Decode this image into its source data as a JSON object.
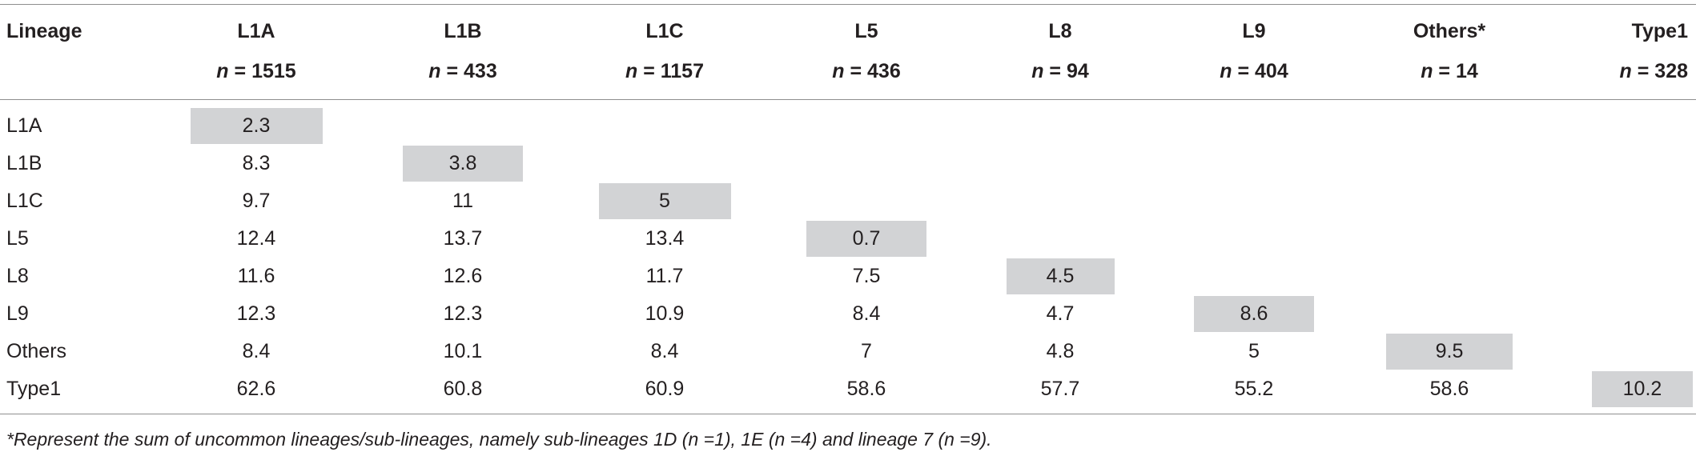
{
  "table": {
    "header_label": "Lineage",
    "columns": [
      {
        "name": "L1A",
        "n_prefix": "n",
        "n_suffix": " = 1515"
      },
      {
        "name": "L1B",
        "n_prefix": "n",
        "n_suffix": " = 433"
      },
      {
        "name": "L1C",
        "n_prefix": "n",
        "n_suffix": " = 1157"
      },
      {
        "name": "L5",
        "n_prefix": "n",
        "n_suffix": " = 436"
      },
      {
        "name": "L8",
        "n_prefix": "n",
        "n_suffix": " = 94"
      },
      {
        "name": "L9",
        "n_prefix": "n",
        "n_suffix": " = 404"
      },
      {
        "name": "Others*",
        "n_prefix": "n",
        "n_suffix": " = 14"
      },
      {
        "name": "Type1",
        "n_prefix": "n",
        "n_suffix": " = 328"
      }
    ],
    "rows": [
      {
        "label": "L1A",
        "values": [
          "2.3"
        ]
      },
      {
        "label": "L1B",
        "values": [
          "8.3",
          "3.8"
        ]
      },
      {
        "label": "L1C",
        "values": [
          "9.7",
          "11",
          "5"
        ]
      },
      {
        "label": "L5",
        "values": [
          "12.4",
          "13.7",
          "13.4",
          "0.7"
        ]
      },
      {
        "label": "L8",
        "values": [
          "11.6",
          "12.6",
          "11.7",
          "7.5",
          "4.5"
        ]
      },
      {
        "label": "L9",
        "values": [
          "12.3",
          "12.3",
          "10.9",
          "8.4",
          "4.7",
          "8.6"
        ]
      },
      {
        "label": "Others",
        "values": [
          "8.4",
          "10.1",
          "8.4",
          "7",
          "4.8",
          "5",
          "9.5"
        ]
      },
      {
        "label": "Type1",
        "values": [
          "62.6",
          "60.8",
          "60.9",
          "58.6",
          "57.7",
          "55.2",
          "58.6",
          "10.2"
        ]
      }
    ],
    "diagonal_color": "#d2d3d5"
  },
  "footnote": "*Represent the sum of uncommon lineages/sub-lineages, namely sub-lineages 1D (n =1), 1E (n =4) and lineage 7 (n =9)."
}
